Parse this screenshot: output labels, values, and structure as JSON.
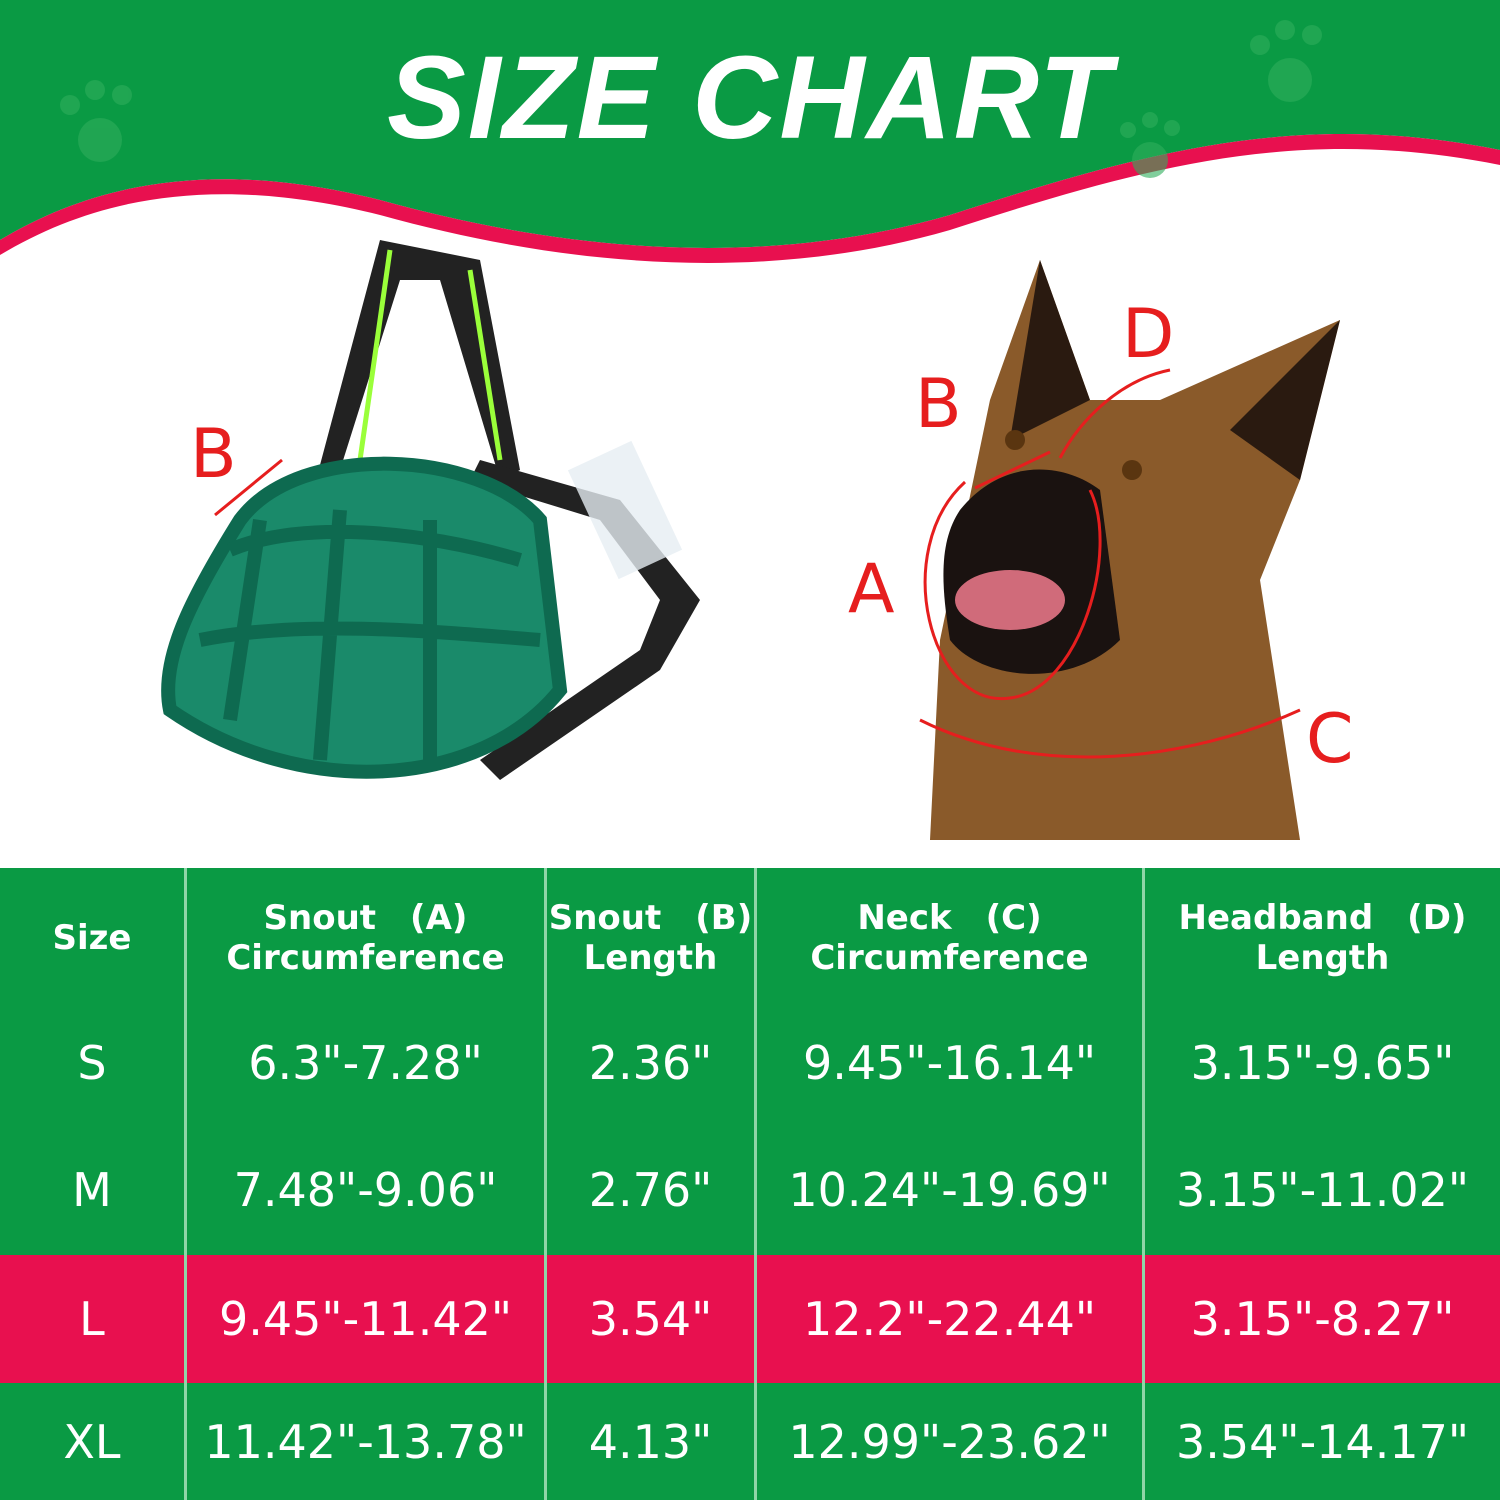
{
  "title": "SIZE CHART",
  "colors": {
    "green": "#0a9a44",
    "pink": "#e8104f",
    "arrow": "#e61e1e"
  },
  "diagram": {
    "muzzle_label": "B",
    "dog_labels": {
      "a": "A",
      "b": "B",
      "c": "C",
      "d": "D"
    }
  },
  "table": {
    "headers": [
      {
        "line1": "Size",
        "line2": ""
      },
      {
        "line1": "Snout　(A)",
        "line2": "Circumference"
      },
      {
        "line1": "Snout　(B)",
        "line2": "Length"
      },
      {
        "line1": "Neck　(C)",
        "line2": "Circumference"
      },
      {
        "line1": "Headband　(D)",
        "line2": "Length"
      }
    ],
    "rows": [
      {
        "size": "S",
        "snout_circ": "6.3\"-7.28\"",
        "snout_len": "2.36\"",
        "neck": "9.45\"-16.14\"",
        "headband": "3.15\"-9.65\""
      },
      {
        "size": "M",
        "snout_circ": "7.48\"-9.06\"",
        "snout_len": "2.76\"",
        "neck": "10.24\"-19.69\"",
        "headband": "3.15\"-11.02\""
      },
      {
        "size": "L",
        "snout_circ": "9.45\"-11.42\"",
        "snout_len": "3.54\"",
        "neck": "12.2\"-22.44\"",
        "headband": "3.15\"-8.27\"",
        "highlighted": true
      },
      {
        "size": "XL",
        "snout_circ": "11.42\"-13.78\"",
        "snout_len": "4.13\"",
        "neck": "12.99\"-23.62\"",
        "headband": "3.54\"-14.17\""
      }
    ]
  }
}
